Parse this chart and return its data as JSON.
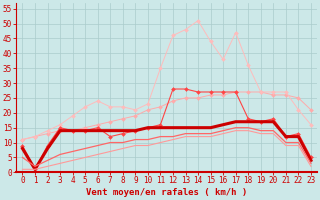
{
  "xlabel": "Vent moyen/en rafales ( km/h )",
  "background_color": "#cce8e8",
  "grid_color": "#aacccc",
  "xlim": [
    -0.5,
    23.5
  ],
  "ylim": [
    0,
    57
  ],
  "yticks": [
    0,
    5,
    10,
    15,
    20,
    25,
    30,
    35,
    40,
    45,
    50,
    55
  ],
  "xticks": [
    0,
    1,
    2,
    3,
    4,
    5,
    6,
    7,
    8,
    9,
    10,
    11,
    12,
    13,
    14,
    15,
    16,
    17,
    18,
    19,
    20,
    21,
    22,
    23
  ],
  "series": [
    {
      "color": "#ffaaaa",
      "alpha": 1.0,
      "marker": "D",
      "markersize": 2.0,
      "linewidth": 0.7,
      "data_x": [
        0,
        1,
        2,
        3,
        4,
        5,
        6,
        7,
        8,
        9,
        10,
        11,
        12,
        13,
        14,
        15,
        16,
        17,
        18,
        19,
        20,
        21,
        22,
        23
      ],
      "data_y": [
        11,
        12,
        13,
        14,
        14,
        15,
        16,
        17,
        18,
        19,
        21,
        22,
        24,
        25,
        25,
        26,
        26,
        27,
        27,
        27,
        26,
        26,
        25,
        21
      ]
    },
    {
      "color": "#ffbbbb",
      "alpha": 1.0,
      "marker": "D",
      "markersize": 2.0,
      "linewidth": 0.7,
      "data_x": [
        0,
        1,
        2,
        3,
        4,
        5,
        6,
        7,
        8,
        9,
        10,
        11,
        12,
        13,
        14,
        15,
        16,
        17,
        18,
        19,
        20,
        21,
        22,
        23
      ],
      "data_y": [
        11,
        12,
        14,
        16,
        19,
        22,
        24,
        22,
        22,
        21,
        23,
        35,
        46,
        48,
        51,
        44,
        38,
        47,
        36,
        27,
        27,
        27,
        21,
        16
      ]
    },
    {
      "color": "#ff4444",
      "alpha": 1.0,
      "marker": "D",
      "markersize": 2.0,
      "linewidth": 0.8,
      "data_x": [
        0,
        1,
        2,
        3,
        4,
        5,
        6,
        7,
        8,
        9,
        10,
        11,
        12,
        13,
        14,
        15,
        16,
        17,
        18,
        19,
        20,
        21,
        22,
        23
      ],
      "data_y": [
        9,
        1,
        9,
        15,
        14,
        14,
        15,
        12,
        13,
        14,
        15,
        16,
        28,
        28,
        27,
        27,
        27,
        27,
        18,
        17,
        18,
        12,
        13,
        5
      ]
    },
    {
      "color": "#cc0000",
      "alpha": 1.0,
      "marker": null,
      "markersize": 0,
      "linewidth": 2.2,
      "data_x": [
        0,
        1,
        2,
        3,
        4,
        5,
        6,
        7,
        8,
        9,
        10,
        11,
        12,
        13,
        14,
        15,
        16,
        17,
        18,
        19,
        20,
        21,
        22,
        23
      ],
      "data_y": [
        8,
        1,
        8,
        14,
        14,
        14,
        14,
        14,
        14,
        14,
        15,
        15,
        15,
        15,
        15,
        15,
        16,
        17,
        17,
        17,
        17,
        12,
        12,
        4
      ]
    },
    {
      "color": "#ff6666",
      "alpha": 1.0,
      "marker": null,
      "markersize": 0,
      "linewidth": 0.9,
      "data_x": [
        0,
        1,
        2,
        3,
        4,
        5,
        6,
        7,
        8,
        9,
        10,
        11,
        12,
        13,
        14,
        15,
        16,
        17,
        18,
        19,
        20,
        21,
        22,
        23
      ],
      "data_y": [
        5,
        2,
        4,
        6,
        7,
        8,
        9,
        10,
        10,
        11,
        11,
        12,
        12,
        13,
        13,
        13,
        14,
        15,
        15,
        14,
        14,
        10,
        10,
        3
      ]
    },
    {
      "color": "#ff9999",
      "alpha": 1.0,
      "marker": null,
      "markersize": 0,
      "linewidth": 0.8,
      "data_x": [
        0,
        1,
        2,
        3,
        4,
        5,
        6,
        7,
        8,
        9,
        10,
        11,
        12,
        13,
        14,
        15,
        16,
        17,
        18,
        19,
        20,
        21,
        22,
        23
      ],
      "data_y": [
        1,
        1,
        2,
        3,
        4,
        5,
        6,
        7,
        8,
        9,
        9,
        10,
        11,
        12,
        12,
        12,
        13,
        14,
        14,
        13,
        13,
        9,
        9,
        2
      ]
    }
  ],
  "axis_color": "#cc0000",
  "label_color": "#cc0000",
  "tick_label_color": "#cc0000",
  "tick_fontsize": 5.5,
  "xlabel_fontsize": 6.5,
  "xlabel_fontweight": "bold"
}
